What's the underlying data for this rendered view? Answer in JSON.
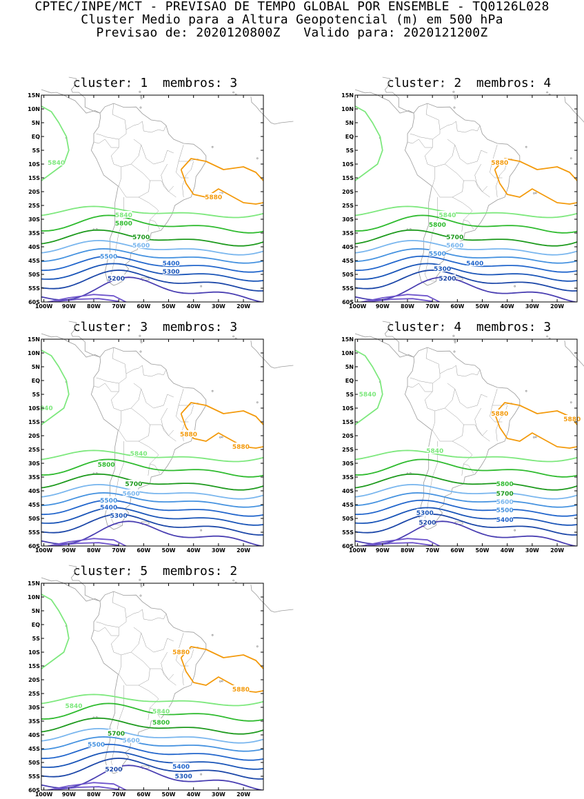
{
  "header": {
    "line1": "CPTEC/INPE/MCT - PREVISAO DE TEMPO GLOBAL POR ENSEMBLE - TQ0126L028",
    "line2": "Cluster Medio para a Altura Geopotencial (m) em 500 hPa",
    "line3": "Previsao de: 2020120800Z   Valido para: 2020121200Z"
  },
  "lat_ticks": [
    "15N",
    "10N",
    "5N",
    "EQ",
    "5S",
    "10S",
    "15S",
    "20S",
    "25S",
    "30S",
    "35S",
    "40S",
    "45S",
    "50S",
    "55S",
    "60S"
  ],
  "lon_ticks": [
    "100W",
    "90W",
    "80W",
    "70W",
    "60W",
    "50W",
    "40W",
    "30W",
    "20W"
  ],
  "colors": {
    "5880": "#f39a0c",
    "5840": "#7de87d",
    "5800": "#2fbb2f",
    "5700": "#1d9a1d",
    "5600": "#79b6ee",
    "5500": "#4592e0",
    "5400": "#2266cc",
    "5300": "#1a55b8",
    "5200": "#1c47a8",
    "5100": "#4a3fb2",
    "5000": "#6f55cc",
    "land": "#9a9a9a"
  },
  "panels": [
    {
      "title": "cluster: 1  membros: 3",
      "labels": [
        {
          "t": "5840",
          "lat": -9.5,
          "lon": -95
        },
        {
          "t": "5880",
          "lat": -22,
          "lon": -32
        },
        {
          "t": "5840",
          "lat": -28.5,
          "lon": -68
        },
        {
          "t": "5800",
          "lat": -31.5,
          "lon": -68
        },
        {
          "t": "5700",
          "lat": -36.5,
          "lon": -61
        },
        {
          "t": "5600",
          "lat": -39.5,
          "lon": -61
        },
        {
          "t": "5500",
          "lat": -43.5,
          "lon": -74
        },
        {
          "t": "5400",
          "lat": -46,
          "lon": -49
        },
        {
          "t": "5300",
          "lat": -49,
          "lon": -49
        },
        {
          "t": "5200",
          "lat": -51.5,
          "lon": -71
        }
      ]
    },
    {
      "title": "cluster: 2  membros: 4",
      "labels": [
        {
          "t": "5880",
          "lat": -9.5,
          "lon": -43
        },
        {
          "t": "5840",
          "lat": -28.5,
          "lon": -64
        },
        {
          "t": "5800",
          "lat": -32,
          "lon": -68
        },
        {
          "t": "5700",
          "lat": -36.5,
          "lon": -61
        },
        {
          "t": "5600",
          "lat": -39.5,
          "lon": -61
        },
        {
          "t": "5500",
          "lat": -42.5,
          "lon": -68
        },
        {
          "t": "5400",
          "lat": -46,
          "lon": -53
        },
        {
          "t": "5300",
          "lat": -48,
          "lon": -66
        },
        {
          "t": "5200",
          "lat": -51.5,
          "lon": -64
        }
      ]
    },
    {
      "title": "cluster: 3  membros: 3",
      "labels": [
        {
          "t": "840",
          "lat": -10,
          "lon": -99
        },
        {
          "t": "5880",
          "lat": -19.5,
          "lon": -42
        },
        {
          "t": "5880",
          "lat": -24,
          "lon": -21
        },
        {
          "t": "5840",
          "lat": -26.5,
          "lon": -62
        },
        {
          "t": "5800",
          "lat": -30.5,
          "lon": -75
        },
        {
          "t": "5700",
          "lat": -37.5,
          "lon": -64
        },
        {
          "t": "5600",
          "lat": -41,
          "lon": -65
        },
        {
          "t": "5500",
          "lat": -43.5,
          "lon": -74
        },
        {
          "t": "5400",
          "lat": -46,
          "lon": -74
        },
        {
          "t": "5300",
          "lat": -49,
          "lon": -70
        }
      ]
    },
    {
      "title": "cluster: 4  membros: 3",
      "labels": [
        {
          "t": "5840",
          "lat": -5,
          "lon": -96
        },
        {
          "t": "5880",
          "lat": -12,
          "lon": -43
        },
        {
          "t": "5880",
          "lat": -14,
          "lon": -14
        },
        {
          "t": "5840",
          "lat": -25.5,
          "lon": -69
        },
        {
          "t": "5800",
          "lat": -37.5,
          "lon": -41
        },
        {
          "t": "5700",
          "lat": -41,
          "lon": -41
        },
        {
          "t": "5600",
          "lat": -44,
          "lon": -41
        },
        {
          "t": "5500",
          "lat": -47,
          "lon": -41
        },
        {
          "t": "5300",
          "lat": -48,
          "lon": -73
        },
        {
          "t": "5400",
          "lat": -50.5,
          "lon": -41
        },
        {
          "t": "5200",
          "lat": -51.5,
          "lon": -72
        }
      ]
    },
    {
      "title": "cluster: 5  membros: 2",
      "labels": [
        {
          "t": "5880",
          "lat": -10,
          "lon": -45
        },
        {
          "t": "5880",
          "lat": -23.5,
          "lon": -21
        },
        {
          "t": "5840",
          "lat": -29.5,
          "lon": -88
        },
        {
          "t": "5840",
          "lat": -31.5,
          "lon": -53
        },
        {
          "t": "5800",
          "lat": -35.5,
          "lon": -53
        },
        {
          "t": "5700",
          "lat": -39.5,
          "lon": -71
        },
        {
          "t": "5600",
          "lat": -42,
          "lon": -65
        },
        {
          "t": "5500",
          "lat": -43.5,
          "lon": -79
        },
        {
          "t": "5400",
          "lat": -51.5,
          "lon": -45
        },
        {
          "t": "5200",
          "lat": -52.5,
          "lon": -72
        },
        {
          "t": "5300",
          "lat": -55,
          "lon": -44
        }
      ]
    }
  ]
}
